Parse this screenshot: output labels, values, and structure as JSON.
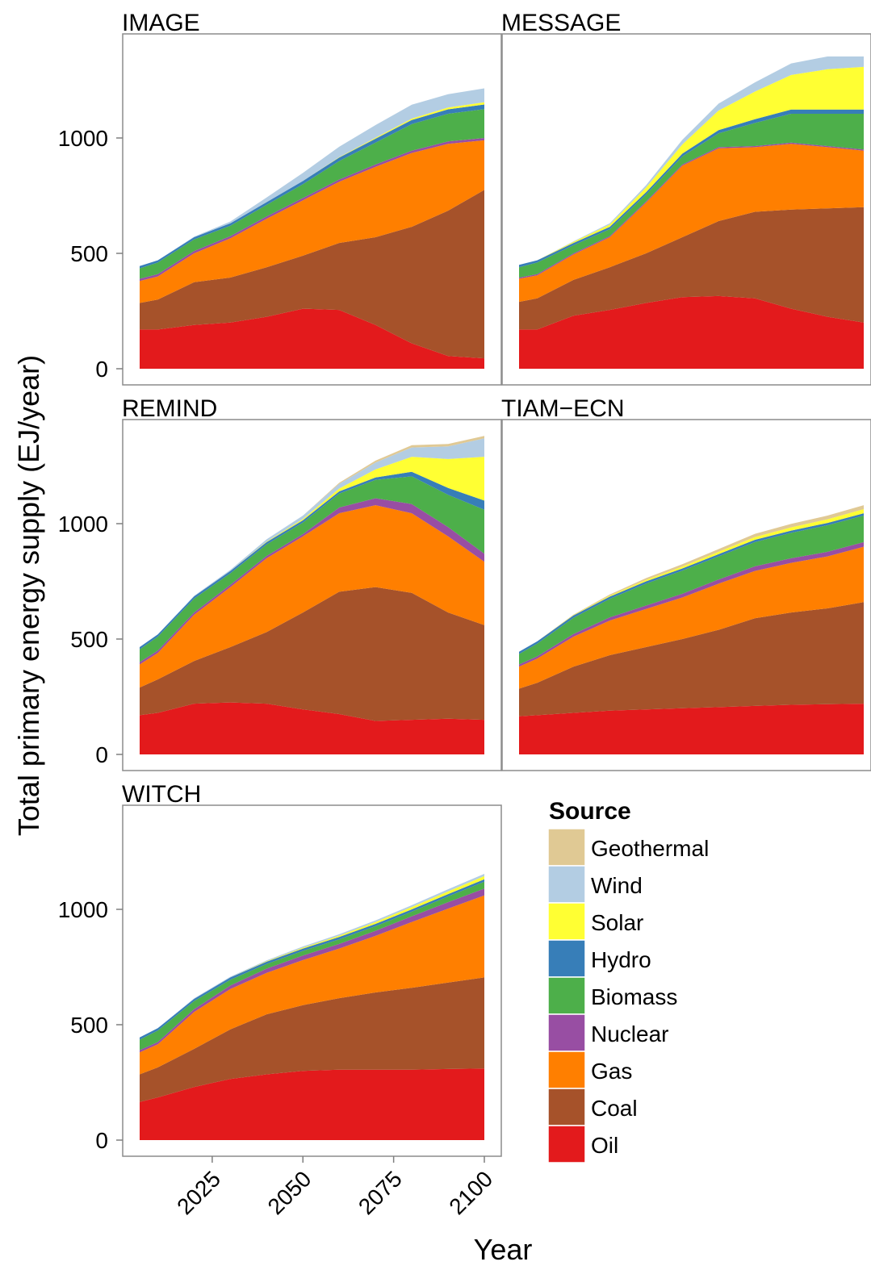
{
  "chart_data": {
    "type": "area",
    "stacked": true,
    "xlabel": "Year",
    "ylabel": "Total primary energy supply (EJ/year)",
    "ylim": [
      0,
      1400
    ],
    "xlim": [
      2005,
      2100
    ],
    "x_ticks": [
      2025,
      2050,
      2075,
      2100
    ],
    "y_ticks": [
      0,
      500,
      1000
    ],
    "grid": false,
    "legend": {
      "title": "Source",
      "position": "bottom-right",
      "entries": [
        "Geothermal",
        "Wind",
        "Solar",
        "Hydro",
        "Biomass",
        "Nuclear",
        "Gas",
        "Coal",
        "Oil"
      ]
    },
    "colors": {
      "Oil": "#e31a1c",
      "Coal": "#a6522a",
      "Gas": "#ff7f00",
      "Nuclear": "#984ea3",
      "Biomass": "#4daf4a",
      "Hydro": "#377eb8",
      "Solar": "#ffff33",
      "Wind": "#b3cde3",
      "Geothermal": "#e0c994"
    },
    "stack_order": [
      "Oil",
      "Coal",
      "Gas",
      "Nuclear",
      "Biomass",
      "Hydro",
      "Solar",
      "Wind",
      "Geothermal"
    ],
    "panels": [
      {
        "name": "IMAGE",
        "x": [
          2005,
          2010,
          2020,
          2030,
          2040,
          2050,
          2060,
          2070,
          2080,
          2090,
          2100
        ],
        "series": [
          {
            "name": "Oil",
            "values": [
              170,
              170,
              190,
              200,
              225,
              260,
              255,
              190,
              110,
              55,
              45
            ]
          },
          {
            "name": "Coal",
            "values": [
              115,
              130,
              185,
              195,
              215,
              230,
              290,
              380,
              505,
              630,
              730
            ]
          },
          {
            "name": "Gas",
            "values": [
              95,
              100,
              125,
              170,
              210,
              240,
              265,
              305,
              320,
              290,
              215
            ]
          },
          {
            "name": "Nuclear",
            "values": [
              10,
              10,
              10,
              10,
              10,
              10,
              10,
              10,
              10,
              10,
              10
            ]
          },
          {
            "name": "Biomass",
            "values": [
              45,
              50,
              50,
              45,
              50,
              60,
              80,
              95,
              115,
              120,
              125
            ]
          },
          {
            "name": "Hydro",
            "values": [
              10,
              10,
              10,
              10,
              12,
              14,
              15,
              17,
              18,
              19,
              20
            ]
          },
          {
            "name": "Solar",
            "values": [
              0,
              0,
              0,
              0,
              0,
              0,
              2,
              4,
              6,
              8,
              10
            ]
          },
          {
            "name": "Wind",
            "values": [
              0,
              0,
              2,
              8,
              20,
              35,
              45,
              55,
              60,
              58,
              60
            ]
          },
          {
            "name": "Geothermal",
            "values": [
              0,
              0,
              0,
              0,
              0,
              0,
              0,
              0,
              0,
              0,
              0
            ]
          }
        ]
      },
      {
        "name": "MESSAGE",
        "x": [
          2005,
          2010,
          2020,
          2030,
          2040,
          2050,
          2060,
          2070,
          2080,
          2090,
          2100
        ],
        "series": [
          {
            "name": "Oil",
            "values": [
              170,
              170,
              230,
              255,
              285,
              310,
              315,
              305,
              260,
              225,
              200
            ]
          },
          {
            "name": "Coal",
            "values": [
              120,
              135,
              155,
              185,
              215,
              260,
              325,
              375,
              430,
              470,
              500
            ]
          },
          {
            "name": "Gas",
            "values": [
              100,
              100,
              110,
              130,
              220,
              310,
              315,
              280,
              285,
              265,
              245
            ]
          },
          {
            "name": "Nuclear",
            "values": [
              5,
              5,
              5,
              5,
              5,
              5,
              5,
              5,
              5,
              5,
              5
            ]
          },
          {
            "name": "Biomass",
            "values": [
              45,
              50,
              35,
              30,
              30,
              35,
              60,
              100,
              125,
              140,
              155
            ]
          },
          {
            "name": "Hydro",
            "values": [
              10,
              10,
              10,
              10,
              10,
              12,
              14,
              16,
              18,
              18,
              18
            ]
          },
          {
            "name": "Solar",
            "values": [
              0,
              0,
              5,
              10,
              20,
              40,
              85,
              120,
              150,
              175,
              185
            ]
          },
          {
            "name": "Wind",
            "values": [
              0,
              0,
              2,
              5,
              10,
              20,
              30,
              40,
              50,
              55,
              45
            ]
          },
          {
            "name": "Geothermal",
            "values": [
              0,
              0,
              0,
              0,
              0,
              0,
              0,
              0,
              0,
              0,
              0
            ]
          }
        ]
      },
      {
        "name": "REMIND",
        "x": [
          2005,
          2010,
          2020,
          2030,
          2040,
          2050,
          2060,
          2070,
          2080,
          2090,
          2100
        ],
        "series": [
          {
            "name": "Oil",
            "values": [
              170,
              180,
              220,
              225,
              220,
              195,
              175,
              145,
              150,
              155,
              150
            ]
          },
          {
            "name": "Coal",
            "values": [
              120,
              145,
              185,
              240,
              310,
              420,
              530,
              580,
              550,
              460,
              410
            ]
          },
          {
            "name": "Gas",
            "values": [
              100,
              115,
              200,
              260,
              320,
              330,
              340,
              355,
              345,
              330,
              275
            ]
          },
          {
            "name": "Nuclear",
            "values": [
              10,
              10,
              10,
              10,
              10,
              10,
              25,
              30,
              40,
              40,
              35
            ]
          },
          {
            "name": "Biomass",
            "values": [
              55,
              60,
              60,
              50,
              50,
              50,
              60,
              80,
              120,
              140,
              190
            ]
          },
          {
            "name": "Hydro",
            "values": [
              10,
              10,
              10,
              10,
              10,
              10,
              10,
              10,
              20,
              30,
              40
            ]
          },
          {
            "name": "Solar",
            "values": [
              0,
              0,
              0,
              0,
              2,
              5,
              12,
              35,
              65,
              125,
              190
            ]
          },
          {
            "name": "Wind",
            "values": [
              0,
              0,
              2,
              5,
              10,
              15,
              20,
              30,
              40,
              55,
              80
            ]
          },
          {
            "name": "Geothermal",
            "values": [
              0,
              0,
              0,
              0,
              0,
              0,
              5,
              8,
              10,
              10,
              10
            ]
          }
        ]
      },
      {
        "name": "TIAM−ECN",
        "x": [
          2005,
          2010,
          2020,
          2030,
          2040,
          2050,
          2060,
          2070,
          2080,
          2090,
          2100
        ],
        "series": [
          {
            "name": "Oil",
            "values": [
              165,
              170,
              180,
              190,
              195,
              200,
              205,
              210,
              215,
              218,
              220
            ]
          },
          {
            "name": "Coal",
            "values": [
              120,
              140,
              200,
              240,
              270,
              300,
              335,
              380,
              400,
              415,
              440
            ]
          },
          {
            "name": "Gas",
            "values": [
              95,
              105,
              130,
              150,
              165,
              180,
              200,
              205,
              215,
              225,
              240
            ]
          },
          {
            "name": "Nuclear",
            "values": [
              10,
              10,
              12,
              14,
              15,
              16,
              18,
              20,
              20,
              20,
              20
            ]
          },
          {
            "name": "Biomass",
            "values": [
              45,
              55,
              70,
              80,
              95,
              100,
              100,
              105,
              110,
              115,
              115
            ]
          },
          {
            "name": "Hydro",
            "values": [
              10,
              10,
              10,
              10,
              10,
              10,
              10,
              10,
              10,
              10,
              10
            ]
          },
          {
            "name": "Solar",
            "values": [
              0,
              0,
              2,
              4,
              6,
              8,
              10,
              12,
              14,
              16,
              18
            ]
          },
          {
            "name": "Wind",
            "values": [
              0,
              0,
              0,
              0,
              0,
              0,
              0,
              0,
              0,
              0,
              0
            ]
          },
          {
            "name": "Geothermal",
            "values": [
              0,
              0,
              2,
              5,
              8,
              10,
              12,
              14,
              15,
              16,
              17
            ]
          }
        ]
      },
      {
        "name": "WITCH",
        "x": [
          2005,
          2010,
          2020,
          2030,
          2040,
          2050,
          2060,
          2070,
          2080,
          2090,
          2100
        ],
        "series": [
          {
            "name": "Oil",
            "values": [
              165,
              185,
              230,
              265,
              285,
              300,
              305,
              305,
              305,
              308,
              310
            ]
          },
          {
            "name": "Coal",
            "values": [
              120,
              130,
              165,
              215,
              260,
              285,
              310,
              335,
              355,
              375,
              395
            ]
          },
          {
            "name": "Gas",
            "values": [
              95,
              100,
              160,
              175,
              180,
              195,
              215,
              245,
              285,
              320,
              355
            ]
          },
          {
            "name": "Nuclear",
            "values": [
              10,
              10,
              12,
              15,
              18,
              20,
              20,
              22,
              25,
              28,
              30
            ]
          },
          {
            "name": "Biomass",
            "values": [
              45,
              50,
              35,
              25,
              20,
              20,
              20,
              20,
              20,
              25,
              30
            ]
          },
          {
            "name": "Hydro",
            "values": [
              10,
              10,
              10,
              10,
              10,
              10,
              10,
              10,
              10,
              10,
              10
            ]
          },
          {
            "name": "Solar",
            "values": [
              0,
              0,
              0,
              0,
              2,
              4,
              6,
              8,
              10,
              12,
              14
            ]
          },
          {
            "name": "Wind",
            "values": [
              0,
              0,
              2,
              3,
              4,
              5,
              6,
              7,
              8,
              9,
              10
            ]
          },
          {
            "name": "Geothermal",
            "values": [
              0,
              0,
              0,
              0,
              0,
              0,
              0,
              0,
              0,
              0,
              0
            ]
          }
        ]
      }
    ]
  }
}
